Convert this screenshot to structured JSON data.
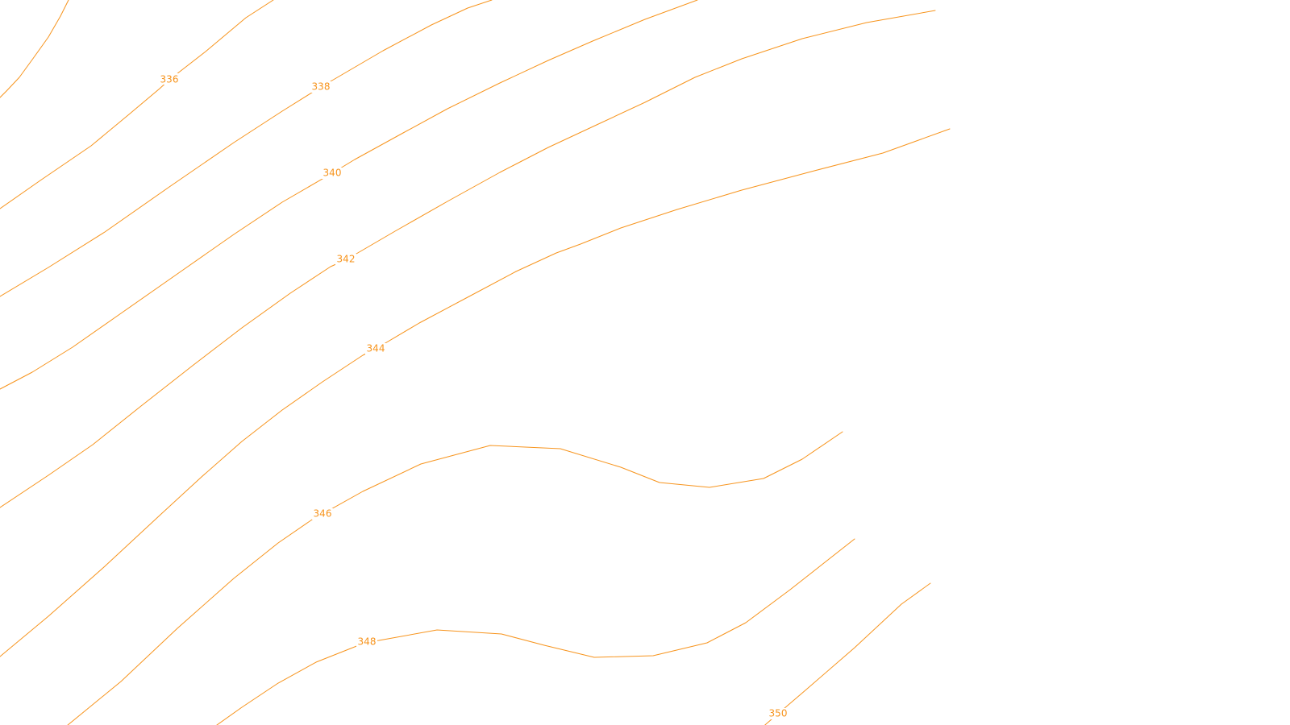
{
  "map": {
    "background_color": "#ffffff",
    "contour_color": "#f7941d",
    "contours": [
      {
        "id": "c334",
        "label": ""
      },
      {
        "id": "c336",
        "label": "336"
      },
      {
        "id": "c338",
        "label": "338"
      },
      {
        "id": "c340",
        "label": "340"
      },
      {
        "id": "c342",
        "label": "342"
      },
      {
        "id": "c344",
        "label": "344"
      },
      {
        "id": "c346",
        "label": "346"
      },
      {
        "id": "c348",
        "label": "348"
      },
      {
        "id": "c350",
        "label": "350"
      }
    ]
  }
}
